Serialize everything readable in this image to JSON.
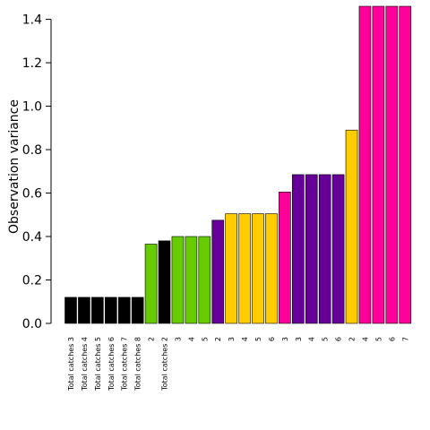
{
  "chart_data": {
    "type": "bar",
    "title": "",
    "xlabel": "",
    "ylabel": "Observation variance",
    "ylim": [
      0,
      1.46
    ],
    "yticks": [
      "0.0",
      "0.2",
      "0.4",
      "0.6",
      "0.8",
      "1.0",
      "1.2",
      "1.4"
    ],
    "grid": false,
    "legend": "none",
    "group_colors": {
      "total": "#000000",
      "green": "#66cc00",
      "purple": "#660099",
      "yellow": "#ffcc00",
      "pink": "#ff0099"
    },
    "categories": [
      "Total catches 3",
      "Total catches 4",
      "Total catches 5",
      "Total catches 6",
      "Total catches 7",
      "Total catches 8",
      "2",
      "Total catches 2",
      "3",
      "4",
      "5",
      "2",
      "3",
      "4",
      "5",
      "6",
      "3",
      "3",
      "4",
      "5",
      "6",
      "2",
      "4",
      "5",
      "6",
      "7"
    ],
    "values": [
      0.12,
      0.12,
      0.12,
      0.12,
      0.12,
      0.12,
      0.365,
      0.38,
      0.4,
      0.4,
      0.4,
      0.475,
      0.505,
      0.505,
      0.505,
      0.505,
      0.605,
      0.685,
      0.685,
      0.685,
      0.685,
      0.89,
      1.46,
      1.46,
      1.46,
      1.46
    ],
    "bar_groups": [
      "total",
      "total",
      "total",
      "total",
      "total",
      "total",
      "green",
      "total",
      "green",
      "green",
      "green",
      "purple",
      "yellow",
      "yellow",
      "yellow",
      "yellow",
      "pink",
      "purple",
      "purple",
      "purple",
      "purple",
      "yellow",
      "pink",
      "pink",
      "pink",
      "pink"
    ]
  }
}
